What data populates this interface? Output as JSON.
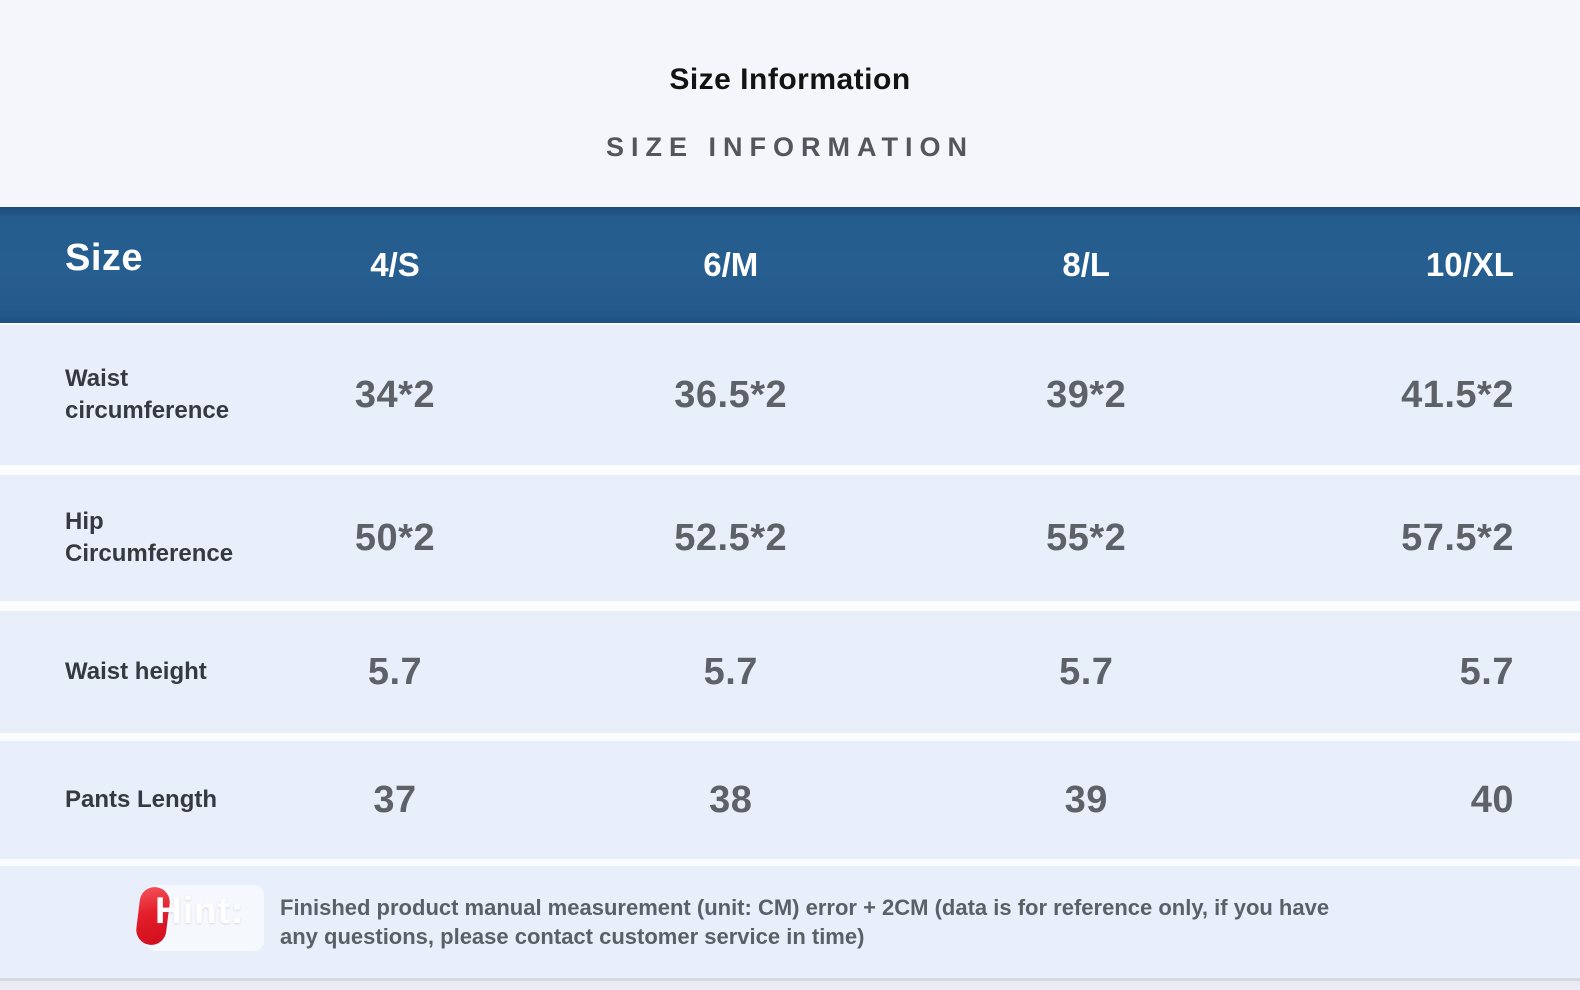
{
  "page": {
    "title": "Size Information",
    "subtitle": "SIZE INFORMATION"
  },
  "table": {
    "header": {
      "label": "Size",
      "columns": [
        "4/S",
        "6/M",
        "8/L",
        "10/XL"
      ]
    },
    "rows": [
      {
        "label": "Waist\ncircumference",
        "values": [
          "34*2",
          "36.5*2",
          "39*2",
          "41.5*2"
        ]
      },
      {
        "label": "Hip\nCircumference",
        "values": [
          "50*2",
          "52.5*2",
          "55*2",
          "57.5*2"
        ]
      },
      {
        "label": "Waist height",
        "values": [
          "5.7",
          "5.7",
          "5.7",
          "5.7"
        ]
      },
      {
        "label": "Pants Length",
        "values": [
          "37",
          "38",
          "39",
          "40"
        ]
      }
    ]
  },
  "hint": {
    "label": "Hint:",
    "icon": "red-pin-icon",
    "text": "Finished product manual measurement (unit: CM) error + 2CM (data is for reference only, if you have any questions, please contact customer service in time)"
  },
  "colors": {
    "header_bg": "#265d8f",
    "header_text": "#ffffff",
    "row_bg": "#e8effb",
    "page_bg": "#f5f6fb",
    "label_text": "#36393f",
    "value_text": "#5e6167",
    "hint_red": "#e41e2a",
    "hint_text": "#5b5f66"
  }
}
